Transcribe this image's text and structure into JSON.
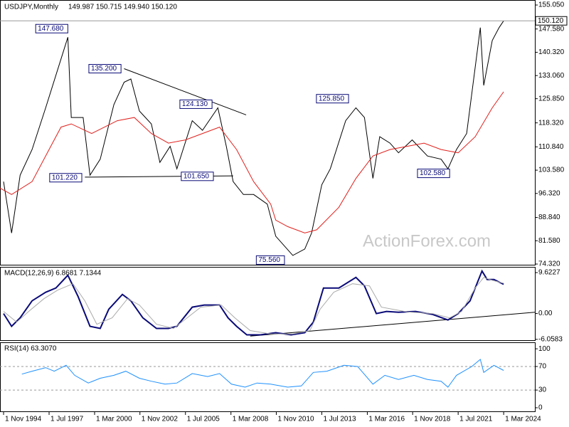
{
  "chart_data": [
    {
      "type": "line",
      "title": "USDJPY,Monthly",
      "subtitle": "149.987 150.715 149.940 150.120",
      "watermark": "ActionForex.com",
      "xlim": [
        1994.62,
        2026.0
      ],
      "ylim": [
        73.88,
        156.61
      ],
      "yticks": [
        {
          "value": 155.05,
          "label": "155.050"
        },
        {
          "value": 147.58,
          "label": "147.580"
        },
        {
          "value": 140.32,
          "label": "140.320"
        },
        {
          "value": 133.06,
          "label": "133.060"
        },
        {
          "value": 125.85,
          "label": "125.850"
        },
        {
          "value": 118.32,
          "label": "118.320"
        },
        {
          "value": 110.84,
          "label": "110.840"
        },
        {
          "value": 103.58,
          "label": "103.580"
        },
        {
          "value": 96.32,
          "label": "96.320"
        },
        {
          "value": 88.84,
          "label": "88.840"
        },
        {
          "value": 81.58,
          "label": "81.580"
        },
        {
          "value": 74.32,
          "label": "74.320"
        }
      ],
      "last_price": {
        "value": 150.12,
        "label": "150.120"
      },
      "series": [
        {
          "color": "#000000",
          "x": [
            1994.83,
            1995.3,
            1995.8,
            1996.5,
            1997.3,
            1998.6,
            1998.8,
            1999.5,
            1999.9,
            2000.5,
            2001.3,
            2001.9,
            2002.3,
            2002.8,
            2003.5,
            2004.0,
            2004.6,
            2005.0,
            2005.9,
            2006.5,
            2007.4,
            2007.9,
            2008.3,
            2008.9,
            2009.5,
            2010.3,
            2010.8,
            2011.8,
            2012.5,
            2012.9,
            2013.5,
            2014.0,
            2014.9,
            2015.5,
            2016.0,
            2016.5,
            2016.9,
            2017.5,
            2018.0,
            2018.8,
            2019.7,
            2020.5,
            2020.9,
            2021.4,
            2022.0,
            2022.8,
            2023.0,
            2023.5,
            2023.9,
            2024.17
          ],
          "values": [
            100,
            84,
            102,
            110,
            123,
            145,
            120,
            120,
            102,
            107,
            124,
            131,
            132,
            122,
            118,
            106,
            111,
            104,
            119,
            116,
            123,
            111,
            100,
            96,
            96,
            93,
            83,
            77,
            79,
            84,
            99,
            104,
            119,
            123,
            120,
            101,
            114,
            112,
            109,
            113,
            108,
            107,
            104,
            110,
            115,
            148,
            130,
            144,
            148,
            150.12
          ]
        },
        {
          "color": "#e0201c",
          "x": [
            1994.62,
            1995.3,
            1996.5,
            1997.5,
            1998.2,
            1998.8,
            2000.0,
            2001.5,
            2002.5,
            2003.5,
            2004.5,
            2005.5,
            2006.5,
            2007.5,
            2008.5,
            2009.5,
            2010.5,
            2010.8,
            2011.5,
            2012.5,
            2013.2,
            2014.5,
            2015.5,
            2016.5,
            2017.5,
            2018.5,
            2019.5,
            2020.5,
            2021.5,
            2022.5,
            2023.5,
            2024.17
          ],
          "values": [
            98,
            96,
            100,
            110,
            117,
            118,
            115,
            119,
            120,
            115,
            112,
            113,
            115,
            117,
            110,
            100,
            93,
            88,
            86,
            84,
            85,
            92,
            101,
            108,
            110,
            111,
            112,
            110,
            109,
            114,
            123,
            128
          ]
        }
      ],
      "annotations": [
        {
          "x": 1998.6,
          "value": 147.68,
          "label": "147.680"
        },
        {
          "x": 2001.72,
          "value": 135.2,
          "label": "135.200"
        },
        {
          "x": 2007.06,
          "value": 124.13,
          "label": "124.130"
        },
        {
          "x": 1999.42,
          "value": 101.22,
          "label": "101.220"
        },
        {
          "x": 2007.14,
          "value": 101.65,
          "label": "101.650"
        },
        {
          "x": 2015.07,
          "value": 125.85,
          "label": "125.850"
        },
        {
          "x": 2021.0,
          "value": 102.58,
          "label": "102.580"
        },
        {
          "x": 2011.31,
          "value": 75.56,
          "label": "75.560"
        }
      ],
      "trendlines": [
        {
          "x": [
            2001.9,
            2009.06
          ],
          "values": [
            135.2,
            120.8
          ]
        },
        {
          "x": [
            1999.6,
            2008.3
          ],
          "values": [
            101.4,
            101.8
          ]
        }
      ]
    },
    {
      "type": "line",
      "title": "MACD(12,26,9) 6.8681 7.1344",
      "xlim": [
        1994.62,
        2026.0
      ],
      "ylim": [
        -6.42,
        10.8
      ],
      "yticks": [
        9.6227,
        {
          "value": 0,
          "label": "0.00"
        },
        -6.0583
      ],
      "series": [
        {
          "color": "#0a0a78",
          "x": [
            1994.83,
            1995.3,
            1995.8,
            1996.5,
            1997.3,
            1997.9,
            1998.6,
            1999.2,
            1999.9,
            2000.5,
            2001.0,
            2001.8,
            2002.3,
            2003.0,
            2003.8,
            2004.5,
            2005.0,
            2005.9,
            2006.6,
            2007.5,
            2008.0,
            2008.5,
            2009.1,
            2009.9,
            2010.8,
            2011.7,
            2012.5,
            2013.0,
            2013.6,
            2014.5,
            2015.5,
            2016.0,
            2016.7,
            2017.3,
            2018.0,
            2019.0,
            2020.0,
            2020.9,
            2021.5,
            2022.2,
            2022.9,
            2023.2,
            2023.6,
            2024.17
          ],
          "values": [
            0,
            -3,
            -1,
            3,
            5,
            6,
            9,
            4,
            -3,
            -3.5,
            1,
            4.5,
            3,
            -1,
            -3.5,
            -3.5,
            -3,
            1.5,
            2,
            2,
            -1,
            -3,
            -5,
            -5,
            -4.5,
            -5,
            -4.5,
            -2,
            6,
            6,
            8.5,
            6.5,
            0,
            0.5,
            0.3,
            0.5,
            -0.2,
            -1.5,
            0,
            3,
            10,
            8,
            8,
            6.87
          ]
        },
        {
          "color": "#aaaaaa",
          "x": [
            1994.83,
            1995.6,
            1996.3,
            1997.2,
            1998.0,
            1998.9,
            1999.6,
            2000.3,
            2001.2,
            2002.1,
            2002.8,
            2003.8,
            2004.8,
            2005.6,
            2006.4,
            2007.6,
            2008.4,
            2009.3,
            2010.5,
            2011.8,
            2012.8,
            2013.4,
            2014.2,
            2015.3,
            2016.3,
            2017.0,
            2018.5,
            2020.0,
            2021.0,
            2021.7,
            2022.5,
            2023.0,
            2023.5,
            2024.17
          ],
          "values": [
            0.5,
            -2,
            0.5,
            3.5,
            5.5,
            7,
            3,
            -2.5,
            -1,
            3.5,
            2,
            -2.5,
            -3.5,
            -1,
            1.5,
            2,
            -1,
            -4,
            -4.8,
            -4.8,
            -4,
            1,
            5,
            7,
            6.5,
            1.5,
            0.4,
            0,
            -1,
            0.5,
            6,
            8.5,
            7.8,
            7.13
          ]
        }
      ],
      "trendlines": [
        {
          "x": [
            2009.3,
            2026.0
          ],
          "values": [
            -5.3,
            0.3
          ]
        }
      ]
    },
    {
      "type": "line",
      "title": "RSI(14) 63.3070",
      "xlim": [
        1994.62,
        2026.0
      ],
      "ylim": [
        -7.3,
        109.8
      ],
      "yticks": [
        100,
        70,
        30,
        0
      ],
      "xticks": [
        {
          "value": 1994.83,
          "label": "1 Nov 1994"
        },
        {
          "value": 1997.5,
          "label": "1 Jul 1997"
        },
        {
          "value": 2000.17,
          "label": "1 Mar 2000"
        },
        {
          "value": 2002.83,
          "label": "1 Nov 2002"
        },
        {
          "value": 2005.5,
          "label": "1 Jul 2005"
        },
        {
          "value": 2008.17,
          "label": "1 Mar 2008"
        },
        {
          "value": 2010.83,
          "label": "1 Nov 2010"
        },
        {
          "value": 2013.5,
          "label": "1 Jul 2013"
        },
        {
          "value": 2016.17,
          "label": "1 Mar 2016"
        },
        {
          "value": 2018.83,
          "label": "1 Nov 2018"
        },
        {
          "value": 2021.5,
          "label": "1 Jul 2021"
        },
        {
          "value": 2024.17,
          "label": "1 Mar 2024"
        }
      ],
      "series": [
        {
          "color": "#1e90ff",
          "x": [
            1995.9,
            1996.5,
            1997.3,
            1997.8,
            1998.5,
            1999.0,
            1999.8,
            2000.5,
            2001.3,
            2002.0,
            2002.8,
            2003.5,
            2004.3,
            2005.0,
            2005.9,
            2006.8,
            2007.5,
            2008.2,
            2009.0,
            2009.7,
            2010.5,
            2011.5,
            2012.3,
            2013.0,
            2013.8,
            2014.8,
            2015.6,
            2016.5,
            2017.2,
            2018.0,
            2018.9,
            2019.7,
            2020.5,
            2020.9,
            2021.4,
            2022.3,
            2022.8,
            2023.0,
            2023.6,
            2024.17
          ],
          "values": [
            57,
            62,
            68,
            62,
            72,
            55,
            42,
            50,
            55,
            62,
            50,
            45,
            40,
            42,
            58,
            53,
            58,
            40,
            35,
            42,
            40,
            35,
            37,
            60,
            62,
            72,
            70,
            40,
            55,
            48,
            55,
            48,
            45,
            35,
            55,
            70,
            82,
            60,
            72,
            63.307
          ]
        }
      ]
    }
  ]
}
